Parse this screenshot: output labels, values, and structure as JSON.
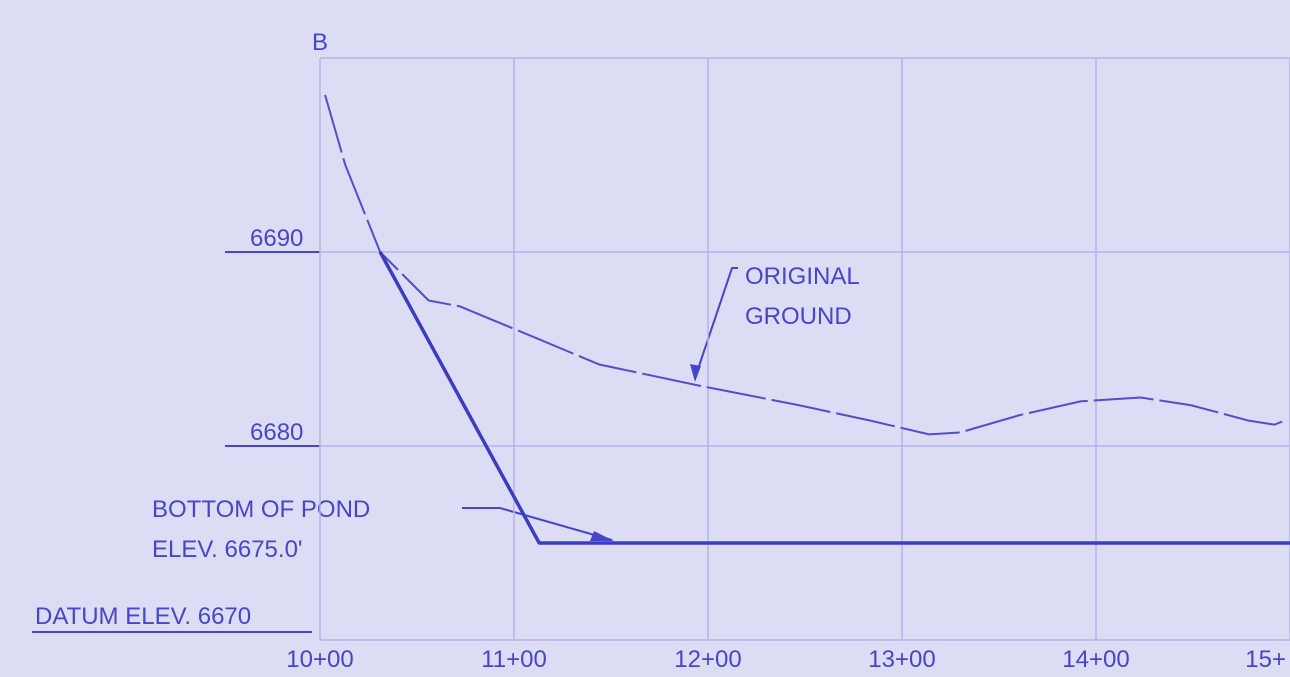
{
  "chart_data": {
    "type": "line",
    "title": "B",
    "annotations": [
      "ORIGINAL",
      "GROUND",
      "BOTTOM OF POND",
      "ELEV. 6675.0'"
    ],
    "datum_label": "DATUM ELEV. 6670",
    "xlim": [
      1000,
      1500
    ],
    "xticks": [
      {
        "value": 1000,
        "label": "10+00"
      },
      {
        "value": 1100,
        "label": "11+00"
      },
      {
        "value": 1200,
        "label": "12+00"
      },
      {
        "value": 1300,
        "label": "13+00"
      },
      {
        "value": 1400,
        "label": "14+00"
      },
      {
        "value": 1500,
        "label": "15+"
      }
    ],
    "ylim": [
      6670,
      6700
    ],
    "yticks": [
      6680,
      6690
    ],
    "grid": true,
    "series": [
      {
        "color": "#5050c8",
        "dashed": true,
        "x": [
          1002.6,
          1013,
          1031,
          1056,
          1072,
          1113,
          1144,
          1196,
          1247,
          1284,
          1314,
          1330,
          1361,
          1392,
          1423,
          1449,
          1479,
          1492,
          1497
        ],
        "values": [
          6698.1,
          6694.5,
          6690.0,
          6687.5,
          6687.2,
          6685.5,
          6684.2,
          6683.1,
          6682.1,
          6681.3,
          6680.6,
          6680.7,
          6681.6,
          6682.3,
          6682.5,
          6682.1,
          6681.3,
          6681.1,
          6681.3
        ]
      },
      {
        "color": "#3c3cc0",
        "dashed": false,
        "x": [
          1031,
          1113,
          1500
        ],
        "values": [
          6690.0,
          6675.0,
          6675.0
        ]
      }
    ]
  }
}
